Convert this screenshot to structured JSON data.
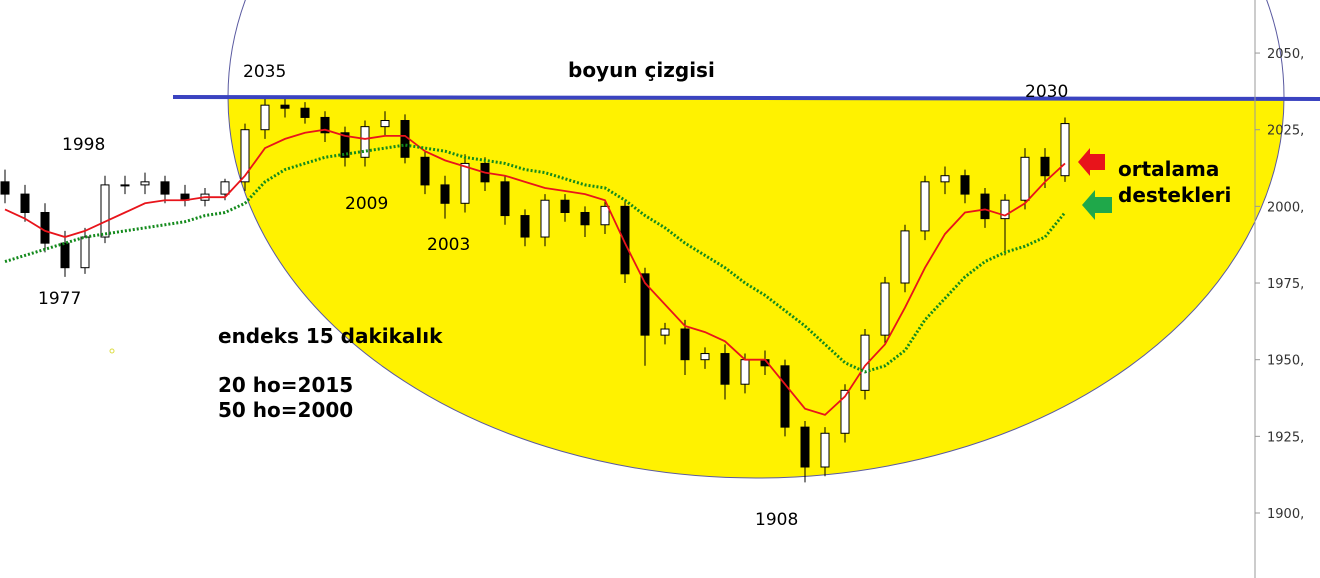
{
  "chart_data": {
    "type": "candlestick",
    "x": [
      0,
      1,
      2,
      3,
      4,
      5,
      6,
      7,
      8,
      9,
      10,
      11,
      12,
      13,
      14,
      15,
      16,
      17,
      18,
      19,
      20,
      21,
      22,
      23,
      24,
      25,
      26,
      27,
      28,
      29,
      30,
      31,
      32,
      33,
      34,
      35,
      36,
      37,
      38,
      39,
      40,
      41,
      42,
      43,
      44,
      45,
      46,
      47,
      48,
      49,
      50,
      51,
      52,
      53
    ],
    "open": [
      2008,
      2004,
      1998,
      1988,
      1980,
      1990,
      2007,
      2007,
      2008,
      2004,
      2002,
      2004,
      2008,
      2025,
      2033,
      2032,
      2029,
      2024,
      2016,
      2026,
      2028,
      2016,
      2007,
      2001,
      2014,
      2008,
      1997,
      1990,
      2002,
      1998,
      1994,
      2000,
      1978,
      1958,
      1960,
      1950,
      1952,
      1942,
      1950,
      1948,
      1928,
      1915,
      1926,
      1940,
      1958,
      1975,
      1992,
      2008,
      2010,
      2004,
      1996,
      2002,
      2016,
      2010
    ],
    "high": [
      2012,
      2007,
      2001,
      1992,
      1993,
      2010,
      2010,
      2011,
      2010,
      2007,
      2006,
      2009,
      2027,
      2036,
      2035,
      2034,
      2031,
      2026,
      2028,
      2031,
      2030,
      2018,
      2010,
      2017,
      2016,
      2010,
      1999,
      2004,
      2004,
      2000,
      2002,
      2002,
      1980,
      1962,
      1963,
      1954,
      1955,
      1952,
      1953,
      1950,
      1930,
      1928,
      1942,
      1960,
      1977,
      1994,
      2010,
      2013,
      2012,
      2006,
      2004,
      2019,
      2019,
      2029
    ],
    "low": [
      2001,
      1995,
      1985,
      1977,
      1978,
      1988,
      2004,
      2004,
      2001,
      2000,
      2000,
      2002,
      2005,
      2022,
      2029,
      2027,
      2021,
      2013,
      2013,
      2023,
      2014,
      2004,
      1996,
      1998,
      2005,
      1994,
      1987,
      1987,
      1995,
      1990,
      1991,
      1975,
      1948,
      1955,
      1945,
      1947,
      1937,
      1939,
      1945,
      1925,
      1910,
      1912,
      1923,
      1937,
      1955,
      1972,
      1989,
      2004,
      2001,
      1993,
      1984,
      1999,
      2006,
      2008
    ],
    "close": [
      2004,
      1998,
      1988,
      1980,
      1990,
      2007,
      2007,
      2008,
      2004,
      2002,
      2004,
      2008,
      2025,
      2033,
      2032,
      2029,
      2024,
      2016,
      2026,
      2028,
      2016,
      2007,
      2001,
      2014,
      2008,
      1997,
      1990,
      2002,
      1998,
      1994,
      2000,
      1978,
      1958,
      1960,
      1950,
      1952,
      1942,
      1950,
      1948,
      1928,
      1915,
      1926,
      1940,
      1958,
      1975,
      1992,
      2008,
      2010,
      2004,
      1996,
      2002,
      2016,
      2010,
      2027
    ],
    "series": [
      {
        "color": "#e8141b",
        "values": [
          1999,
          1996,
          1992,
          1990,
          1992,
          1995,
          1998,
          2001,
          2002,
          2002,
          2003,
          2003,
          2010,
          2019,
          2022,
          2024,
          2025,
          2023,
          2022,
          2023,
          2023,
          2018,
          2015,
          2013,
          2011,
          2010,
          2008,
          2006,
          2005,
          2004,
          2002,
          1988,
          1975,
          1968,
          1961,
          1959,
          1956,
          1950,
          1950,
          1942,
          1934,
          1932,
          1938,
          1948,
          1955,
          1967,
          1980,
          1991,
          1998,
          1999,
          1997,
          2001,
          2008,
          2014
        ]
      },
      {
        "color": "#138a1c",
        "values": [
          1982,
          1984,
          1986,
          1988,
          1990,
          1991,
          1992,
          1993,
          1994,
          1995,
          1997,
          1998,
          2001,
          2008,
          2012,
          2014,
          2016,
          2017,
          2018,
          2019,
          2020,
          2019,
          2018,
          2016,
          2015,
          2014,
          2012,
          2011,
          2009,
          2007,
          2006,
          2002,
          1997,
          1993,
          1988,
          1984,
          1980,
          1975,
          1971,
          1966,
          1961,
          1955,
          1949,
          1946,
          1948,
          1953,
          1963,
          1970,
          1977,
          1982,
          1985,
          1987,
          1990,
          1998
        ]
      }
    ],
    "xlim": [
      -0.25,
      62.5
    ],
    "ylim": [
      1878.8,
      2067.3
    ],
    "yticks": [
      {
        "value": 1900,
        "label": "1900,"
      },
      {
        "value": 1925,
        "label": "1925,"
      },
      {
        "value": 1950,
        "label": "1950,"
      },
      {
        "value": 1975,
        "label": "1975,"
      },
      {
        "value": 2000,
        "label": "2000,"
      },
      {
        "value": 2025,
        "label": "2025,"
      },
      {
        "value": 2050,
        "label": "2050,"
      }
    ],
    "annotations": [
      "2035",
      "boyun çizgisi",
      "2030",
      "1998",
      "2009",
      "2003",
      "1977",
      "endeks 15 dakikalık",
      "20 ho=2015",
      "50 ho=2000",
      "ortalama",
      "destekleri",
      "1908"
    ]
  }
}
